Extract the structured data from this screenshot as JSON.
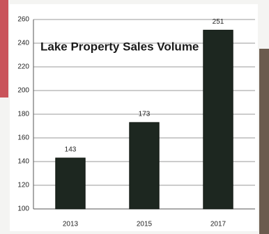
{
  "chart_data": {
    "type": "bar",
    "title": "Lake Property Sales Volume",
    "categories": [
      "2013",
      "2015",
      "2017"
    ],
    "values": [
      143,
      173,
      251
    ],
    "color": "#1d2720",
    "ylim": [
      100,
      260
    ],
    "yticks": [
      100,
      120,
      140,
      160,
      180,
      200,
      220,
      240,
      260
    ],
    "grid": true
  }
}
